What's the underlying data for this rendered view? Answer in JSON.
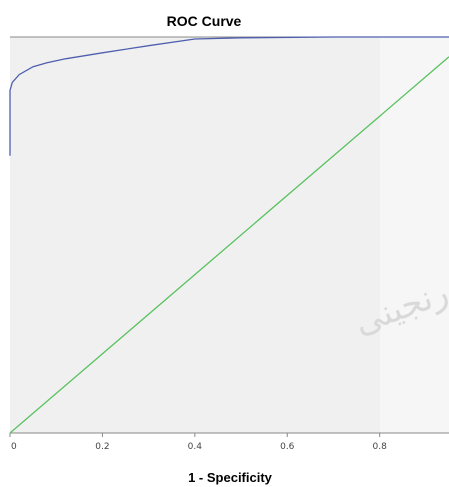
{
  "chart_data": {
    "type": "line",
    "title": "ROC Curve",
    "xlabel": "1 - Specificity",
    "ylabel": "",
    "xlim": [
      0,
      0.95
    ],
    "ylim": [
      0,
      1.0
    ],
    "x_ticks": [
      "0",
      "0.2",
      "0.4",
      "0.6",
      "0.8"
    ],
    "grid": false,
    "series": [
      {
        "name": "",
        "color": "#4f5fae",
        "x": [
          0.0,
          0.0,
          0.005,
          0.02,
          0.05,
          0.08,
          0.12,
          0.2,
          0.3,
          0.4,
          0.5,
          0.7,
          0.9,
          0.95
        ],
        "y": [
          0.7,
          0.865,
          0.885,
          0.905,
          0.925,
          0.935,
          0.945,
          0.96,
          0.978,
          0.995,
          0.998,
          1.0,
          1.0,
          1.0
        ]
      },
      {
        "name": "",
        "color": "#58c25e",
        "x": [
          0.0,
          0.95
        ],
        "y": [
          0.0,
          0.95
        ]
      }
    ],
    "watermark_text": "ﺭﻧﺠﻴﻨﻰ"
  }
}
